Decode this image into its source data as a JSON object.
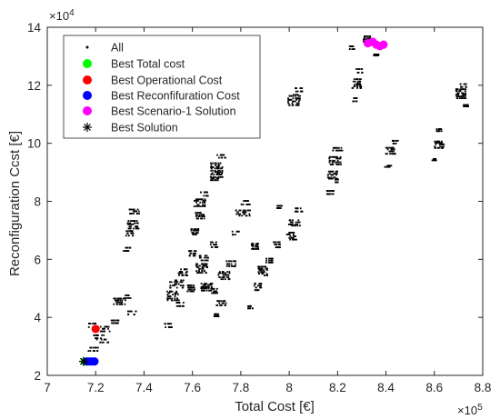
{
  "chart_data": {
    "type": "scatter",
    "xlabel": "Total Cost [€]",
    "ylabel": "Reconfiguration Ccst [€]",
    "x_multiplier_label": "×10",
    "x_multiplier_exp": "5",
    "y_multiplier_label": "×10",
    "y_multiplier_exp": "4",
    "xlim": [
      7.0,
      8.8
    ],
    "ylim": [
      2.0,
      14.0
    ],
    "xticks": [
      7.0,
      7.2,
      7.4,
      7.6,
      7.8,
      8.0,
      8.2,
      8.4,
      8.6,
      8.8
    ],
    "yticks": [
      2,
      4,
      6,
      8,
      10,
      12,
      14
    ],
    "xtick_labels": [
      "7",
      "7.2",
      "7.4",
      "7.6",
      "7.8",
      "8",
      "8.2",
      "8.4",
      "8.6",
      "8.8"
    ],
    "ytick_labels": [
      "2",
      "4",
      "6",
      "8",
      "10",
      "12",
      "14"
    ],
    "grid": false,
    "legend_position": "top-left",
    "series": [
      {
        "name": "All",
        "marker": "dot",
        "color": "#000000",
        "clusters": [
          [
            7.185,
            3.72,
            0.04,
            0.12
          ],
          [
            7.21,
            3.32,
            0.05,
            0.1
          ],
          [
            7.23,
            3.18,
            0.06,
            0.1
          ],
          [
            7.24,
            3.6,
            0.04,
            0.15
          ],
          [
            7.19,
            2.9,
            0.04,
            0.1
          ],
          [
            7.28,
            3.85,
            0.03,
            0.1
          ],
          [
            7.3,
            4.55,
            0.05,
            0.2
          ],
          [
            7.35,
            4.15,
            0.04,
            0.1
          ],
          [
            7.33,
            4.7,
            0.03,
            0.1
          ],
          [
            7.33,
            6.35,
            0.03,
            0.1
          ],
          [
            7.34,
            6.9,
            0.03,
            0.15
          ],
          [
            7.355,
            7.2,
            0.05,
            0.25
          ],
          [
            7.36,
            7.65,
            0.04,
            0.15
          ],
          [
            7.5,
            3.72,
            0.03,
            0.1
          ],
          [
            7.52,
            4.75,
            0.05,
            0.3
          ],
          [
            7.535,
            5.15,
            0.06,
            0.25
          ],
          [
            7.56,
            5.55,
            0.04,
            0.2
          ],
          [
            7.55,
            4.45,
            0.03,
            0.1
          ],
          [
            7.595,
            5.0,
            0.03,
            0.2
          ],
          [
            7.6,
            6.2,
            0.03,
            0.15
          ],
          [
            7.61,
            6.95,
            0.03,
            0.2
          ],
          [
            7.63,
            7.5,
            0.04,
            0.2
          ],
          [
            7.63,
            7.95,
            0.05,
            0.25
          ],
          [
            7.65,
            8.25,
            0.03,
            0.1
          ],
          [
            7.64,
            5.7,
            0.05,
            0.3
          ],
          [
            7.65,
            6.05,
            0.04,
            0.15
          ],
          [
            7.66,
            5.05,
            0.05,
            0.25
          ],
          [
            7.69,
            6.5,
            0.03,
            0.15
          ],
          [
            7.7,
            8.85,
            0.05,
            0.25
          ],
          [
            7.7,
            9.15,
            0.05,
            0.3
          ],
          [
            7.72,
            9.55,
            0.04,
            0.1
          ],
          [
            7.69,
            4.9,
            0.03,
            0.15
          ],
          [
            7.7,
            4.08,
            0.02,
            0.05
          ],
          [
            7.72,
            4.5,
            0.04,
            0.15
          ],
          [
            7.73,
            5.45,
            0.05,
            0.25
          ],
          [
            7.76,
            5.85,
            0.04,
            0.15
          ],
          [
            7.78,
            6.9,
            0.03,
            0.1
          ],
          [
            7.81,
            7.6,
            0.06,
            0.2
          ],
          [
            7.82,
            7.95,
            0.04,
            0.1
          ],
          [
            7.86,
            6.45,
            0.03,
            0.2
          ],
          [
            7.84,
            4.35,
            0.02,
            0.05
          ],
          [
            7.87,
            5.05,
            0.03,
            0.2
          ],
          [
            7.89,
            5.6,
            0.04,
            0.3
          ],
          [
            7.92,
            5.95,
            0.03,
            0.15
          ],
          [
            7.95,
            6.5,
            0.03,
            0.15
          ],
          [
            7.96,
            7.8,
            0.02,
            0.1
          ],
          [
            8.01,
            6.8,
            0.04,
            0.25
          ],
          [
            8.02,
            7.25,
            0.05,
            0.2
          ],
          [
            8.04,
            7.7,
            0.03,
            0.1
          ],
          [
            8.02,
            11.5,
            0.05,
            0.35
          ],
          [
            8.04,
            11.85,
            0.03,
            0.1
          ],
          [
            8.17,
            8.3,
            0.03,
            0.1
          ],
          [
            8.18,
            8.9,
            0.04,
            0.25
          ],
          [
            8.19,
            9.4,
            0.05,
            0.25
          ],
          [
            8.2,
            9.8,
            0.04,
            0.1
          ],
          [
            8.2,
            8.7,
            0.02,
            0.1
          ],
          [
            8.27,
            11.5,
            0.02,
            0.1
          ],
          [
            8.28,
            12.05,
            0.04,
            0.3
          ],
          [
            8.29,
            12.5,
            0.03,
            0.1
          ],
          [
            8.26,
            13.3,
            0.02,
            0.1
          ],
          [
            8.32,
            13.6,
            0.03,
            0.2
          ],
          [
            8.36,
            13.05,
            0.02,
            0.05
          ],
          [
            8.41,
            9.2,
            0.03,
            0.05
          ],
          [
            8.42,
            9.75,
            0.04,
            0.2
          ],
          [
            8.44,
            10.05,
            0.03,
            0.1
          ],
          [
            8.6,
            9.45,
            0.02,
            0.05
          ],
          [
            8.62,
            9.95,
            0.04,
            0.25
          ],
          [
            8.62,
            10.45,
            0.02,
            0.05
          ],
          [
            8.71,
            11.7,
            0.04,
            0.3
          ],
          [
            8.72,
            12.0,
            0.03,
            0.1
          ],
          [
            8.73,
            11.3,
            0.02,
            0.05
          ]
        ]
      },
      {
        "name": "Best Total cost",
        "marker": "circle",
        "color": "#00ff00",
        "x": [
          7.155
        ],
        "y": [
          2.48
        ]
      },
      {
        "name": "Best Operational Cost",
        "marker": "circle",
        "color": "#ff0000",
        "x": [
          7.2
        ],
        "y": [
          3.6
        ]
      },
      {
        "name": "Best Reconfifuration Cost",
        "marker": "circle",
        "color": "#0000ff",
        "x": [
          7.165,
          7.175,
          7.185,
          7.195
        ],
        "y": [
          2.48,
          2.48,
          2.48,
          2.48
        ]
      },
      {
        "name": "Best Scenario-1 Solution",
        "marker": "circle",
        "color": "#ff00ff",
        "x": [
          8.325,
          8.345,
          8.36,
          8.375,
          8.39
        ],
        "y": [
          13.45,
          13.5,
          13.4,
          13.35,
          13.4
        ]
      },
      {
        "name": "Best Solution",
        "marker": "asterisk",
        "color": "#000000",
        "x": [
          7.15
        ],
        "y": [
          2.48
        ]
      }
    ]
  }
}
